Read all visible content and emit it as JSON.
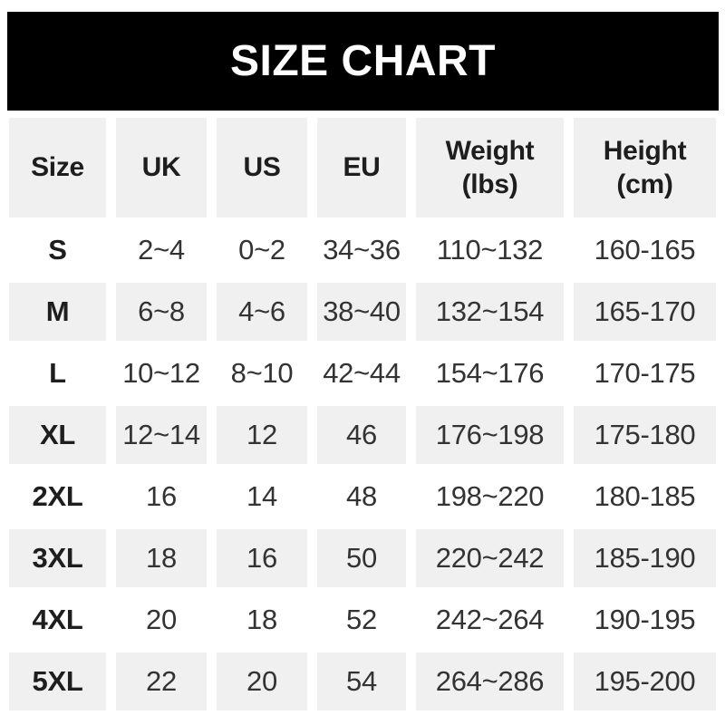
{
  "banner": {
    "title": "SIZE CHART"
  },
  "chart_data": {
    "type": "table",
    "title": "SIZE CHART",
    "columns": [
      "Size",
      "UK",
      "US",
      "EU",
      "Weight (lbs)",
      "Height (cm)"
    ],
    "rows": [
      [
        "S",
        "2~4",
        "0~2",
        "34~36",
        "110~132",
        "160-165"
      ],
      [
        "M",
        "6~8",
        "4~6",
        "38~40",
        "132~154",
        "165-170"
      ],
      [
        "L",
        "10~12",
        "8~10",
        "42~44",
        "154~176",
        "170-175"
      ],
      [
        "XL",
        "12~14",
        "12",
        "46",
        "176~198",
        "175-180"
      ],
      [
        "2XL",
        "16",
        "14",
        "48",
        "198~220",
        "180-185"
      ],
      [
        "3XL",
        "18",
        "16",
        "50",
        "220~242",
        "185-190"
      ],
      [
        "4XL",
        "20",
        "18",
        "52",
        "242~264",
        "190-195"
      ],
      [
        "5XL",
        "22",
        "20",
        "54",
        "264~286",
        "195-200"
      ]
    ],
    "layout": {
      "alternating_row_shading": "odd data rows shaded, starting unshaded at row S",
      "grid_lines": "off",
      "cell_separator": "white gaps"
    }
  },
  "colors": {
    "page_bg": "#ffffff",
    "banner_bg": "#000000",
    "banner_text": "#ffffff",
    "cell_bg": "#f0f0f0",
    "header_text": "#1e1e1e",
    "value_text": "#333333"
  }
}
